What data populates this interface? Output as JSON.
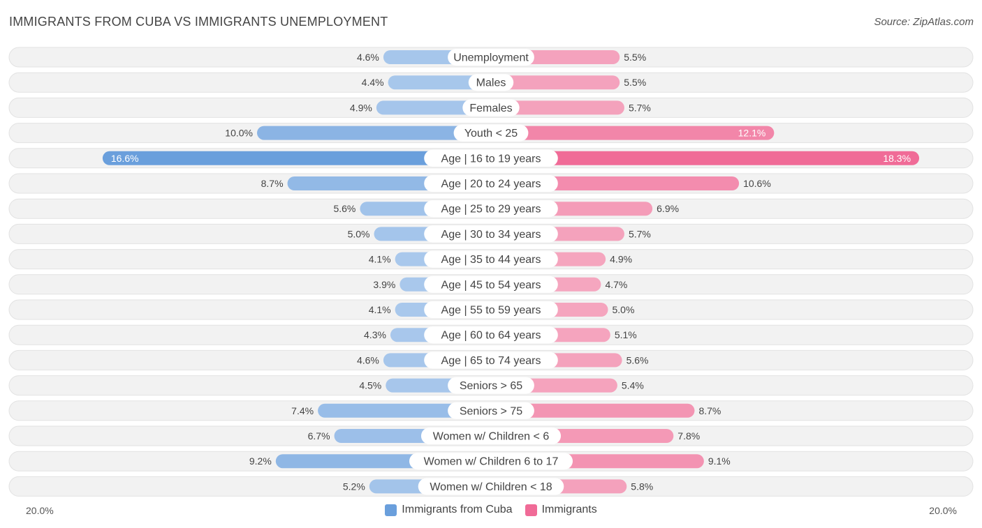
{
  "title": "IMMIGRANTS FROM CUBA VS IMMIGRANTS UNEMPLOYMENT",
  "source": "Source: ZipAtlas.com",
  "colors": {
    "left_dark": "#6a9fdc",
    "left_light": "#a9c8ec",
    "right_dark": "#f06b97",
    "right_light": "#f5a9c1",
    "row_bg": "#f2f2f2",
    "row_border": "#e2e2e2"
  },
  "chart_data": {
    "type": "bar",
    "orientation": "horizontal-diverging",
    "xlim": [
      -20,
      20
    ],
    "axis_left_label": "20.0%",
    "axis_right_label": "20.0%",
    "legend_placement": "bottom-center",
    "categories": [
      "Unemployment",
      "Males",
      "Females",
      "Youth < 25",
      "Age | 16 to 19 years",
      "Age | 20 to 24 years",
      "Age | 25 to 29 years",
      "Age | 30 to 34 years",
      "Age | 35 to 44 years",
      "Age | 45 to 54 years",
      "Age | 55 to 59 years",
      "Age | 60 to 64 years",
      "Age | 65 to 74 years",
      "Seniors > 65",
      "Seniors > 75",
      "Women w/ Children < 6",
      "Women w/ Children 6 to 17",
      "Women w/ Children < 18"
    ],
    "series": [
      {
        "name": "Immigrants from Cuba",
        "values": [
          4.6,
          4.4,
          4.9,
          10.0,
          16.6,
          8.7,
          5.6,
          5.0,
          4.1,
          3.9,
          4.1,
          4.3,
          4.6,
          4.5,
          7.4,
          6.7,
          9.2,
          5.2
        ],
        "labels": [
          "4.6%",
          "4.4%",
          "4.9%",
          "10.0%",
          "16.6%",
          "8.7%",
          "5.6%",
          "5.0%",
          "4.1%",
          "3.9%",
          "4.1%",
          "4.3%",
          "4.6%",
          "4.5%",
          "7.4%",
          "6.7%",
          "9.2%",
          "5.2%"
        ]
      },
      {
        "name": "Immigrants",
        "values": [
          5.5,
          5.5,
          5.7,
          12.1,
          18.3,
          10.6,
          6.9,
          5.7,
          4.9,
          4.7,
          5.0,
          5.1,
          5.6,
          5.4,
          8.7,
          7.8,
          9.1,
          5.8
        ],
        "labels": [
          "5.5%",
          "5.5%",
          "5.7%",
          "12.1%",
          "18.3%",
          "10.6%",
          "6.9%",
          "5.7%",
          "4.9%",
          "4.7%",
          "5.0%",
          "5.1%",
          "5.6%",
          "5.4%",
          "8.7%",
          "7.8%",
          "9.1%",
          "5.8%"
        ]
      }
    ]
  }
}
